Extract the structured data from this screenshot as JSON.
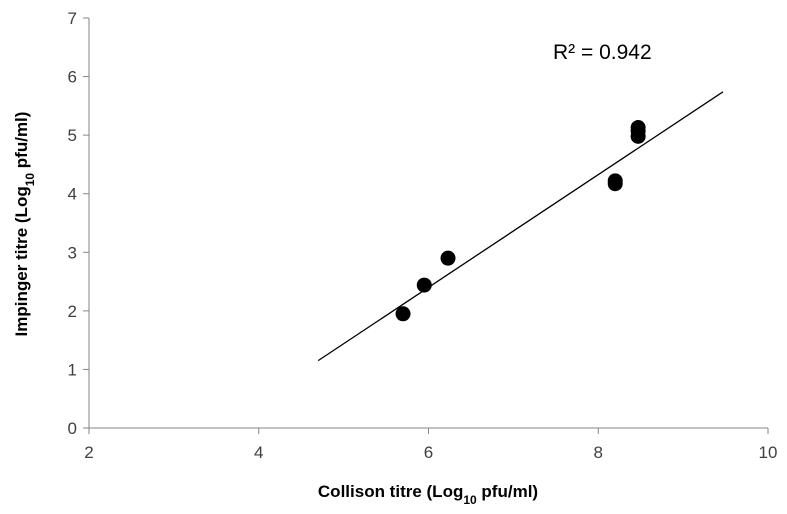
{
  "chart_data": {
    "type": "scatter",
    "title": "",
    "xlabel": {
      "before": "Collison titre (Log",
      "sub": "10",
      "after": " pfu/ml)"
    },
    "ylabel": {
      "before": "Impinger titre (Log",
      "sub": "10",
      "after": " pfu/ml)"
    },
    "xlim": [
      2,
      10
    ],
    "ylim": [
      0,
      7
    ],
    "xticks": [
      2,
      4,
      6,
      8,
      10
    ],
    "yticks": [
      0,
      1,
      2,
      3,
      4,
      5,
      6,
      7
    ],
    "grid": false,
    "legend": "none",
    "series": [
      {
        "points": [
          {
            "x": 5.7,
            "y": 1.95
          },
          {
            "x": 5.95,
            "y": 2.44
          },
          {
            "x": 6.23,
            "y": 2.9
          },
          {
            "x": 8.2,
            "y": 4.17
          },
          {
            "x": 8.2,
            "y": 4.22
          },
          {
            "x": 8.47,
            "y": 4.98
          },
          {
            "x": 8.47,
            "y": 5.07
          },
          {
            "x": 8.47,
            "y": 5.13
          }
        ],
        "color": "#000000"
      }
    ],
    "trendline": {
      "type": "linear",
      "from": {
        "x": 4.7,
        "y": 1.15
      },
      "to": {
        "x": 9.47,
        "y": 5.74
      }
    },
    "annotation": "R² = 0.942"
  }
}
